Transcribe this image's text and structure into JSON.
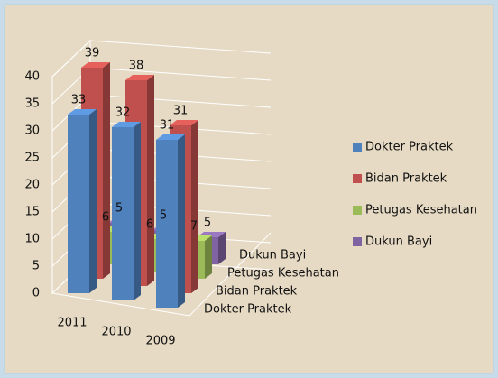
{
  "chart_data": {
    "type": "bar3d",
    "categories": [
      "2011",
      "2010",
      "2009"
    ],
    "series": [
      {
        "name": "Dokter Praktek",
        "color": "#4f81bd",
        "values": [
          33,
          32,
          31
        ]
      },
      {
        "name": "Bidan Praktek",
        "color": "#c0504d",
        "values": [
          39,
          38,
          31
        ]
      },
      {
        "name": "Petugas Kesehatan",
        "color": "#9bbb59",
        "values": [
          6,
          6,
          7
        ]
      },
      {
        "name": "Dukun Bayi",
        "color": "#8064a2",
        "values": [
          5,
          5,
          5
        ]
      }
    ],
    "ylim": [
      0,
      40
    ],
    "yticks": [
      0,
      5,
      10,
      15,
      20,
      25,
      30,
      35,
      40
    ],
    "grid": true,
    "legend": "right"
  }
}
